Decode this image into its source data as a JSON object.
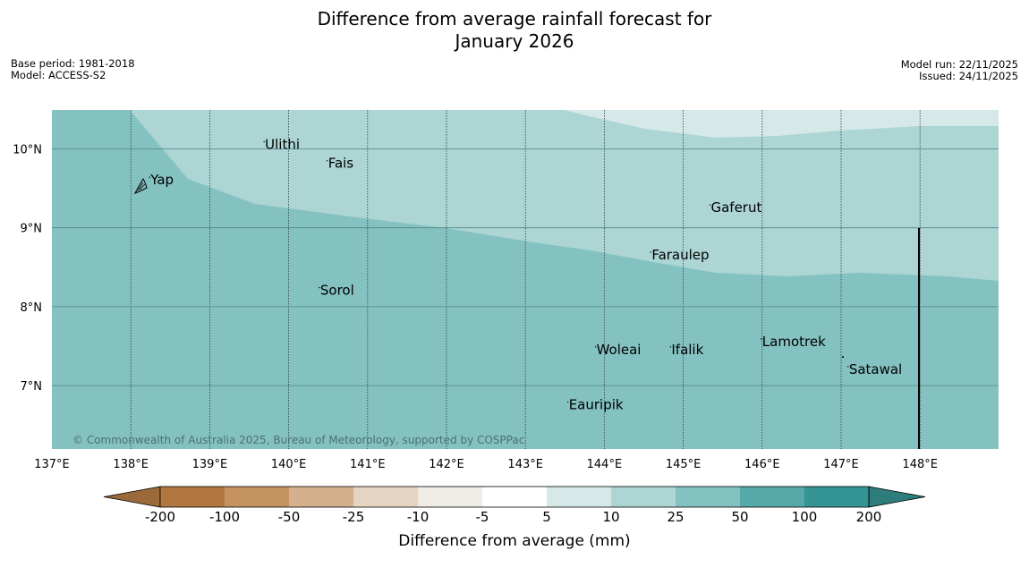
{
  "title": {
    "line1": "Difference from average rainfall forecast for",
    "line2": "January 2026"
  },
  "meta": {
    "base_period": "Base period: 1981-2018",
    "model": "Model: ACCESS-S2",
    "model_run": "Model run: 22/11/2025",
    "issued": "Issued: 24/11/2025"
  },
  "credit": "© Commonwealth of Australia 2025, Bureau of Meteorology, supported by COSPPac",
  "colors": {
    "region_main": "#84c2c1",
    "region_light": "#acd5d4",
    "region_lightest": "#d4e9e8",
    "border_line": "#000000"
  },
  "map": {
    "lon_range": [
      137,
      149
    ],
    "lat_range": [
      6.2,
      10.5
    ],
    "lon_ticks": [
      {
        "value": 137,
        "label": "137°E"
      },
      {
        "value": 138,
        "label": "138°E"
      },
      {
        "value": 139,
        "label": "139°E"
      },
      {
        "value": 140,
        "label": "140°E"
      },
      {
        "value": 141,
        "label": "141°E"
      },
      {
        "value": 142,
        "label": "142°E"
      },
      {
        "value": 143,
        "label": "143°E"
      },
      {
        "value": 144,
        "label": "144°E"
      },
      {
        "value": 145,
        "label": "145°E"
      },
      {
        "value": 146,
        "label": "146°E"
      },
      {
        "value": 147,
        "label": "147°E"
      },
      {
        "value": 148,
        "label": "148°E"
      }
    ],
    "lat_ticks": [
      {
        "value": 10,
        "label": "10°N"
      },
      {
        "value": 9,
        "label": "9°N"
      },
      {
        "value": 8,
        "label": "8°N"
      },
      {
        "value": 7,
        "label": "7°N"
      }
    ],
    "places": [
      {
        "name": "Yap",
        "lon": 138.25,
        "lat": 9.55
      },
      {
        "name": "Ulithi",
        "lon": 139.7,
        "lat": 10.0
      },
      {
        "name": "Fais",
        "lon": 140.5,
        "lat": 9.76
      },
      {
        "name": "Gaferut",
        "lon": 145.35,
        "lat": 9.2
      },
      {
        "name": "Faraulep",
        "lon": 144.6,
        "lat": 8.6
      },
      {
        "name": "Sorol",
        "lon": 140.4,
        "lat": 8.15
      },
      {
        "name": "Woleai",
        "lon": 143.9,
        "lat": 7.4
      },
      {
        "name": "Ifalik",
        "lon": 144.85,
        "lat": 7.4
      },
      {
        "name": "Lamotrek",
        "lon": 146.0,
        "lat": 7.5
      },
      {
        "name": "Satawal",
        "lon": 147.1,
        "lat": 7.15
      },
      {
        "name": "Eauripik",
        "lon": 143.55,
        "lat": 6.7
      }
    ],
    "boundary_lon": 148.0,
    "boundary_lat_top": 9.0
  },
  "colorbar": {
    "title": "Difference from average (mm)",
    "ticks": [
      "-200",
      "-100",
      "-50",
      "-25",
      "-10",
      "-5",
      "5",
      "10",
      "25",
      "50",
      "100",
      "200"
    ],
    "colors": [
      "#b07840",
      "#c4935f",
      "#d4b08c",
      "#e6d4c2",
      "#f0ece6",
      "#ffffff",
      "#d4e9e8",
      "#acd5d4",
      "#84c2c1",
      "#56a9a8",
      "#349594",
      "#2e7d7b"
    ],
    "under_color": "#9a6a3a",
    "over_color": "#2e7d7b"
  }
}
